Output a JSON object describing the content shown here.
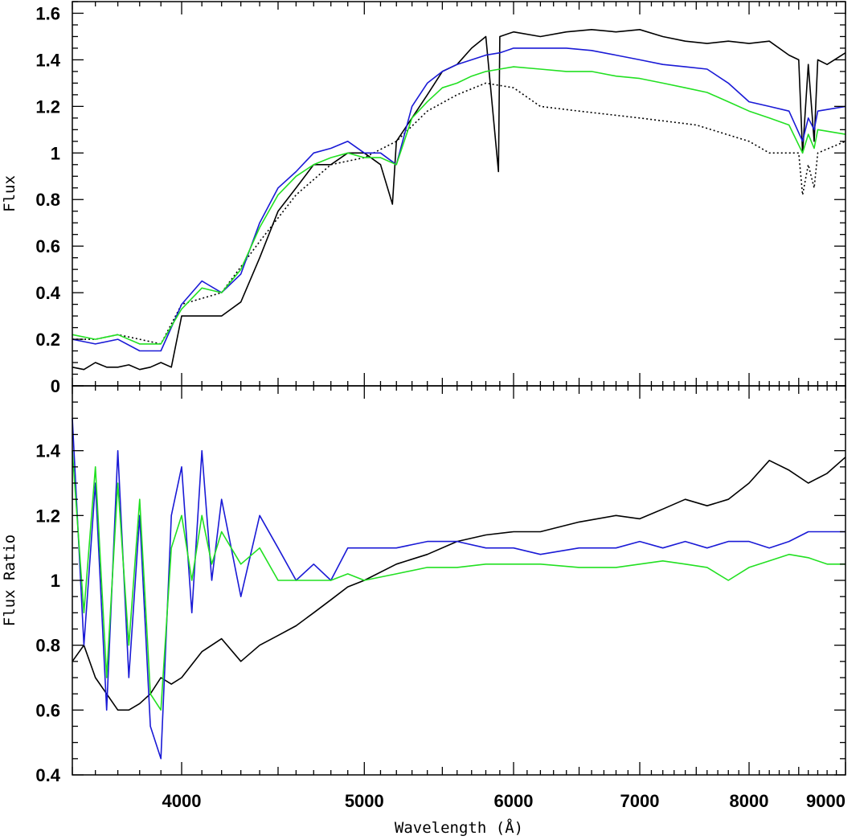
{
  "chart_data": [
    {
      "type": "line",
      "ylabel": "Flux",
      "xlabel": "",
      "xscale": "log",
      "xlim": [
        3500,
        9000
      ],
      "ylim": [
        0,
        1.65
      ],
      "yticks": [
        0,
        0.2,
        0.4,
        0.6,
        0.8,
        1,
        1.2,
        1.4,
        1.6
      ],
      "ytick_labels": [
        "0",
        "0.2",
        "0.4",
        "0.6",
        "0.8",
        "1",
        "1.2",
        "1.4",
        "1.6"
      ],
      "grid": false,
      "series": [
        {
          "color": "#000000",
          "style": "solid",
          "x": [
            3500,
            3550,
            3600,
            3650,
            3700,
            3750,
            3800,
            3850,
            3900,
            3950,
            4000,
            4100,
            4200,
            4300,
            4400,
            4500,
            4600,
            4700,
            4800,
            4900,
            5000,
            5100,
            5175,
            5200,
            5300,
            5400,
            5500,
            5600,
            5700,
            5800,
            5890,
            5900,
            6000,
            6200,
            6400,
            6600,
            6800,
            7000,
            7200,
            7400,
            7600,
            7800,
            8000,
            8200,
            8400,
            8500,
            8540,
            8600,
            8662,
            8700,
            8800,
            9000
          ],
          "y": [
            0.08,
            0.07,
            0.1,
            0.08,
            0.08,
            0.09,
            0.07,
            0.08,
            0.1,
            0.08,
            0.3,
            0.3,
            0.3,
            0.36,
            0.55,
            0.75,
            0.85,
            0.95,
            0.95,
            1.0,
            1.0,
            0.95,
            0.78,
            1.05,
            1.15,
            1.25,
            1.35,
            1.38,
            1.45,
            1.5,
            0.92,
            1.5,
            1.52,
            1.5,
            1.52,
            1.53,
            1.52,
            1.53,
            1.5,
            1.48,
            1.47,
            1.48,
            1.47,
            1.48,
            1.42,
            1.4,
            1.0,
            1.38,
            1.05,
            1.4,
            1.38,
            1.43
          ]
        },
        {
          "color": "#000000",
          "style": "dotted",
          "x": [
            3500,
            3600,
            3700,
            3800,
            3900,
            4000,
            4200,
            4400,
            4600,
            4800,
            5000,
            5200,
            5400,
            5600,
            5800,
            6000,
            6200,
            6500,
            7000,
            7500,
            8000,
            8200,
            8500,
            8540,
            8600,
            8662,
            8700,
            9000
          ],
          "y": [
            0.2,
            0.2,
            0.22,
            0.2,
            0.18,
            0.35,
            0.4,
            0.62,
            0.82,
            0.95,
            0.98,
            1.05,
            1.18,
            1.25,
            1.3,
            1.28,
            1.2,
            1.18,
            1.15,
            1.12,
            1.05,
            1.0,
            1.0,
            0.82,
            0.95,
            0.85,
            1.0,
            1.05
          ]
        },
        {
          "color": "#1a1ad6",
          "style": "solid",
          "x": [
            3500,
            3600,
            3700,
            3800,
            3900,
            4000,
            4100,
            4200,
            4300,
            4400,
            4500,
            4600,
            4700,
            4800,
            4900,
            5000,
            5100,
            5200,
            5300,
            5400,
            5500,
            5600,
            5700,
            5800,
            5900,
            6000,
            6200,
            6400,
            6600,
            6800,
            7000,
            7200,
            7400,
            7600,
            7800,
            8000,
            8200,
            8400,
            8540,
            8600,
            8662,
            8700,
            9000
          ],
          "y": [
            0.2,
            0.18,
            0.2,
            0.15,
            0.15,
            0.35,
            0.45,
            0.4,
            0.48,
            0.7,
            0.85,
            0.92,
            1.0,
            1.02,
            1.05,
            1.0,
            1.0,
            0.95,
            1.2,
            1.3,
            1.35,
            1.38,
            1.4,
            1.42,
            1.43,
            1.45,
            1.45,
            1.45,
            1.44,
            1.42,
            1.4,
            1.38,
            1.37,
            1.36,
            1.3,
            1.22,
            1.2,
            1.18,
            1.05,
            1.15,
            1.1,
            1.18,
            1.2
          ]
        },
        {
          "color": "#22e022",
          "style": "solid",
          "x": [
            3500,
            3600,
            3700,
            3800,
            3900,
            4000,
            4100,
            4200,
            4300,
            4400,
            4500,
            4600,
            4700,
            4800,
            4900,
            5000,
            5100,
            5200,
            5300,
            5400,
            5500,
            5600,
            5700,
            5800,
            5900,
            6000,
            6200,
            6400,
            6600,
            6800,
            7000,
            7200,
            7400,
            7600,
            7800,
            8000,
            8200,
            8400,
            8540,
            8600,
            8662,
            8700,
            9000
          ],
          "y": [
            0.22,
            0.2,
            0.22,
            0.18,
            0.18,
            0.33,
            0.42,
            0.4,
            0.5,
            0.68,
            0.82,
            0.9,
            0.95,
            0.98,
            1.0,
            0.98,
            0.98,
            0.95,
            1.15,
            1.22,
            1.28,
            1.3,
            1.33,
            1.35,
            1.36,
            1.37,
            1.36,
            1.35,
            1.35,
            1.33,
            1.32,
            1.3,
            1.28,
            1.26,
            1.22,
            1.18,
            1.15,
            1.12,
            1.0,
            1.08,
            1.02,
            1.1,
            1.08
          ]
        }
      ]
    },
    {
      "type": "line",
      "ylabel": "Flux Ratio",
      "xlabel": "Wavelength (Å)",
      "xscale": "log",
      "xlim": [
        3500,
        9000
      ],
      "ylim": [
        0.4,
        1.6
      ],
      "xticks": [
        4000,
        5000,
        6000,
        7000,
        8000,
        9000
      ],
      "xtick_labels": [
        "4000",
        "5000",
        "6000",
        "7000",
        "8000",
        "9000"
      ],
      "yticks": [
        0.4,
        0.6,
        0.8,
        1,
        1.2,
        1.4
      ],
      "ytick_labels": [
        "0.4",
        "0.6",
        "0.8",
        "1",
        "1.2",
        "1.4"
      ],
      "grid": false,
      "series": [
        {
          "color": "#000000",
          "style": "solid",
          "x": [
            3500,
            3550,
            3600,
            3650,
            3700,
            3750,
            3800,
            3850,
            3900,
            3950,
            4000,
            4100,
            4200,
            4300,
            4400,
            4500,
            4600,
            4700,
            4800,
            4900,
            5000,
            5200,
            5400,
            5600,
            5800,
            6000,
            6200,
            6500,
            6800,
            7000,
            7200,
            7400,
            7600,
            7800,
            8000,
            8200,
            8400,
            8600,
            8800,
            9000
          ],
          "y": [
            0.75,
            0.8,
            0.7,
            0.65,
            0.6,
            0.6,
            0.62,
            0.65,
            0.7,
            0.68,
            0.7,
            0.78,
            0.82,
            0.75,
            0.8,
            0.83,
            0.86,
            0.9,
            0.94,
            0.98,
            1.0,
            1.05,
            1.08,
            1.12,
            1.14,
            1.15,
            1.15,
            1.18,
            1.2,
            1.19,
            1.22,
            1.25,
            1.23,
            1.25,
            1.3,
            1.37,
            1.34,
            1.3,
            1.33,
            1.38
          ]
        },
        {
          "color": "#1a1ad6",
          "style": "solid",
          "x": [
            3500,
            3550,
            3600,
            3650,
            3700,
            3750,
            3800,
            3850,
            3900,
            3950,
            4000,
            4050,
            4100,
            4150,
            4200,
            4300,
            4400,
            4500,
            4600,
            4700,
            4800,
            4900,
            5000,
            5200,
            5400,
            5600,
            5800,
            6000,
            6200,
            6500,
            6800,
            7000,
            7200,
            7400,
            7600,
            7800,
            8000,
            8200,
            8400,
            8600,
            8800,
            9000
          ],
          "y": [
            1.5,
            0.8,
            1.3,
            0.6,
            1.4,
            0.7,
            1.2,
            0.55,
            0.45,
            1.2,
            1.35,
            0.9,
            1.4,
            1.0,
            1.25,
            0.95,
            1.2,
            1.1,
            1.0,
            1.05,
            1.0,
            1.1,
            1.1,
            1.1,
            1.12,
            1.12,
            1.1,
            1.1,
            1.08,
            1.1,
            1.1,
            1.12,
            1.1,
            1.12,
            1.1,
            1.12,
            1.12,
            1.1,
            1.12,
            1.15,
            1.15,
            1.15
          ]
        },
        {
          "color": "#22e022",
          "style": "solid",
          "x": [
            3500,
            3550,
            3600,
            3650,
            3700,
            3750,
            3800,
            3850,
            3900,
            3950,
            4000,
            4050,
            4100,
            4150,
            4200,
            4300,
            4400,
            4500,
            4600,
            4700,
            4800,
            4900,
            5000,
            5200,
            5400,
            5600,
            5800,
            6000,
            6200,
            6500,
            6800,
            7000,
            7200,
            7400,
            7600,
            7800,
            8000,
            8200,
            8400,
            8600,
            8800,
            9000
          ],
          "y": [
            1.4,
            0.9,
            1.35,
            0.7,
            1.3,
            0.8,
            1.25,
            0.65,
            0.6,
            1.1,
            1.2,
            1.0,
            1.2,
            1.05,
            1.15,
            1.05,
            1.1,
            1.0,
            1.0,
            1.0,
            1.0,
            1.02,
            1.0,
            1.02,
            1.04,
            1.04,
            1.05,
            1.05,
            1.05,
            1.04,
            1.04,
            1.05,
            1.06,
            1.05,
            1.04,
            1.0,
            1.04,
            1.06,
            1.08,
            1.07,
            1.05,
            1.05
          ]
        }
      ]
    }
  ]
}
